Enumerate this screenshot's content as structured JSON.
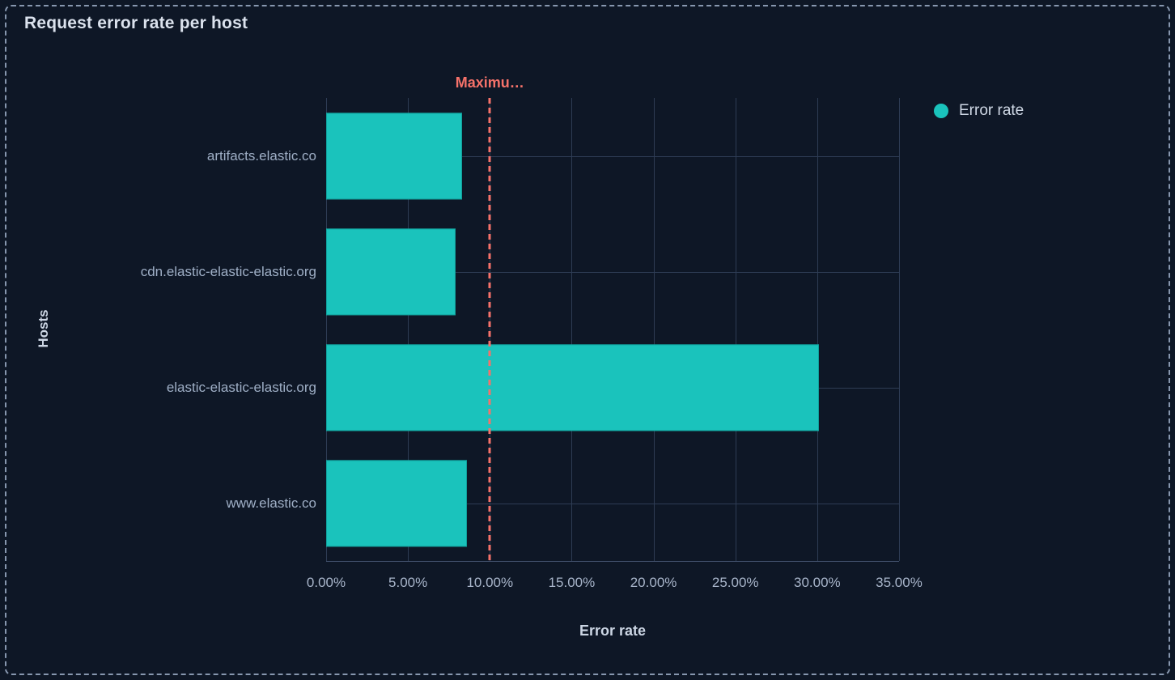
{
  "panel": {
    "title": "Request error rate per host"
  },
  "legend": {
    "items": [
      {
        "label": "Error rate",
        "color": "#1ac3bc"
      }
    ]
  },
  "chart_data": {
    "type": "bar",
    "orientation": "horizontal",
    "title": "Request error rate per host",
    "series_name": "Error rate",
    "categories": [
      "artifacts.elastic.co",
      "cdn.elastic-elastic-elastic.org",
      "elastic-elastic-elastic.org",
      "www.elastic.co"
    ],
    "values": [
      8.3,
      7.9,
      30.1,
      8.6
    ],
    "value_unit": "%",
    "xlabel": "Error rate",
    "ylabel": "Hosts",
    "xlim": [
      0,
      35
    ],
    "x_ticks": [
      "0.00%",
      "5.00%",
      "10.00%",
      "15.00%",
      "20.00%",
      "25.00%",
      "30.00%",
      "35.00%"
    ],
    "x_tick_values": [
      0,
      5,
      10,
      15,
      20,
      25,
      30,
      35
    ],
    "grid": true,
    "legend_position": "top-right",
    "threshold": {
      "label": "Maximu…",
      "full_label": "Maximum",
      "value": 10,
      "color": "#f6726a",
      "style": "dashed"
    },
    "bar_color": "#1ac3bc",
    "bar_border_color": "#10a19c"
  },
  "colors": {
    "background": "#0e1726",
    "panel_border": "#8797af",
    "gridline": "#2e3c54",
    "axis_line": "#41506b",
    "title_text": "#dbe2ed",
    "label_text": "#9fafc6",
    "tick_text": "#a8b5ca",
    "axis_title_text": "#ccd6e4",
    "legend_text": "#cfd8e5"
  }
}
